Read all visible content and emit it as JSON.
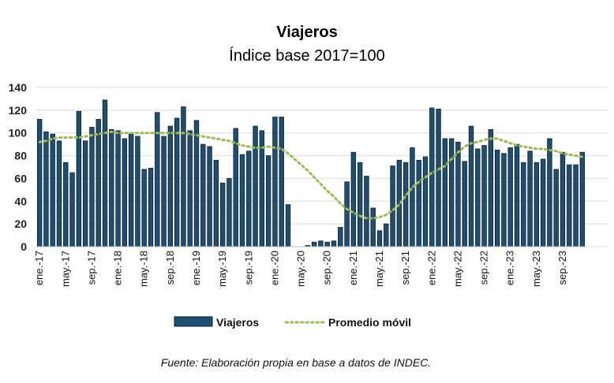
{
  "chart_data": {
    "type": "bar",
    "title": "Viajeros",
    "subtitle": "Índice base 2017=100",
    "source": "Fuente: Elaboración propia en base a datos de INDEC.",
    "ylim": [
      0,
      140
    ],
    "yticks": [
      0,
      20,
      40,
      60,
      80,
      100,
      120,
      140
    ],
    "grid": true,
    "legend_position": "bottom",
    "x_tick_labels": [
      "ene.-17",
      "may.-17",
      "sep.-17",
      "ene.-18",
      "may.-18",
      "sep.-18",
      "ene.-19",
      "may.-19",
      "sep.-19",
      "ene.-20",
      "may.-20",
      "sep.-20",
      "ene.-21",
      "may.-21",
      "sep.-21",
      "ene.-22",
      "may.-22",
      "sep.-22",
      "ene.-23",
      "may.-23",
      "sep.-23"
    ],
    "x_start": "2017-01",
    "x_frequency": "monthly",
    "series": [
      {
        "name": "Viajeros",
        "type": "bar",
        "color": "#1f4e6e",
        "values": [
          112,
          101,
          99,
          93,
          74,
          65,
          119,
          93,
          105,
          112,
          129,
          103,
          102,
          95,
          99,
          97,
          68,
          69,
          118,
          97,
          106,
          113,
          123,
          102,
          111,
          90,
          88,
          76,
          56,
          60,
          104,
          81,
          84,
          106,
          102,
          80,
          114,
          114,
          37,
          0,
          0,
          1,
          4,
          5,
          4,
          5,
          17,
          57,
          83,
          74,
          62,
          34,
          14,
          20,
          71,
          76,
          74,
          87,
          76,
          79,
          122,
          121,
          95,
          95,
          92,
          75,
          106,
          86,
          89,
          103,
          85,
          82,
          87,
          90,
          74,
          84,
          74,
          77,
          95,
          68,
          83,
          72,
          72,
          83
        ]
      },
      {
        "name": "Promedio móvil",
        "type": "line",
        "style": "dotted",
        "color": "#9bbb59",
        "values": [
          92,
          93,
          95,
          96,
          96,
          96,
          96,
          97,
          98,
          99,
          100,
          101,
          100,
          100,
          100,
          100,
          100,
          100,
          100,
          100,
          100,
          100,
          100,
          99,
          98,
          97,
          96,
          95,
          94,
          93,
          91,
          89,
          88,
          87,
          87,
          88,
          87,
          86,
          82,
          77,
          72,
          67,
          61,
          55,
          49,
          44,
          38,
          33,
          30,
          27,
          25,
          25,
          26,
          28,
          32,
          37,
          45,
          52,
          57,
          61,
          65,
          68,
          71,
          77,
          83,
          88,
          91,
          92,
          94,
          95,
          95,
          93,
          91,
          89,
          88,
          87,
          86,
          86,
          85,
          84,
          82,
          81,
          80,
          79
        ]
      }
    ]
  }
}
